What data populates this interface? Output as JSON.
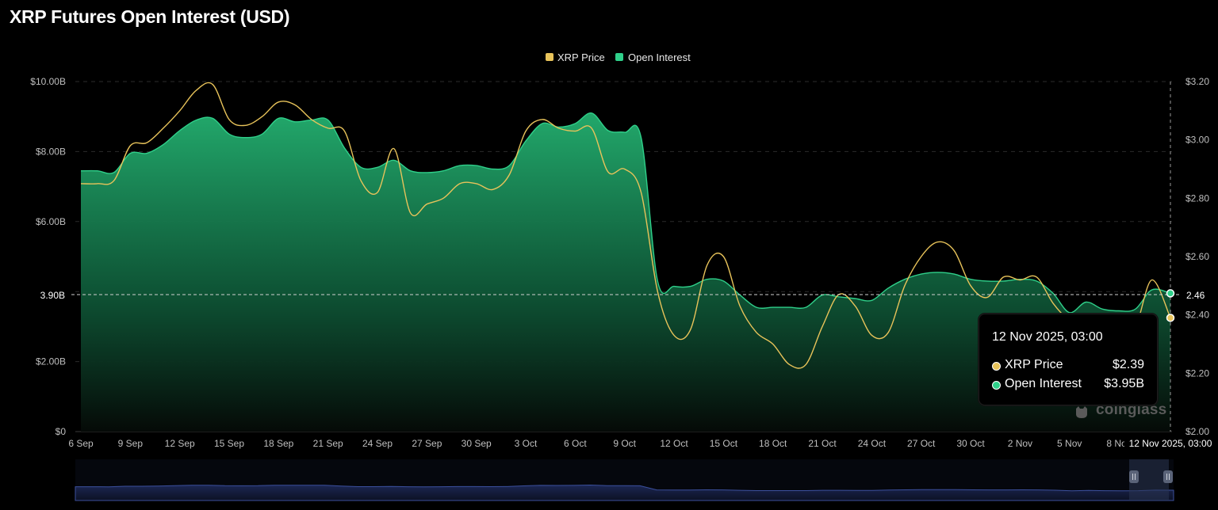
{
  "title": "XRP Futures Open Interest (USD)",
  "colors": {
    "price_line": "#e8c35a",
    "oi_line": "#2fd08a",
    "oi_fill_top": "#1f9e64",
    "background": "#000000"
  },
  "tooltip": {
    "date": "12 Nov 2025, 03:00",
    "rows": [
      {
        "label": "XRP Price",
        "value": "$2.39",
        "color": "#e8c35a"
      },
      {
        "label": "Open Interest",
        "value": "$3.95B",
        "color": "#2fd08a"
      }
    ]
  },
  "crosshair": {
    "left_label": "3.90B",
    "right_label": "2.46",
    "x_label": "12 Nov 2025, 03:00"
  },
  "watermark": "coinglass",
  "chart_data": {
    "type": "area",
    "title": "XRP Futures Open Interest (USD)",
    "legend": {
      "position": "top-center",
      "entries": [
        "XRP Price",
        "Open Interest"
      ]
    },
    "x_tick_labels": [
      "6 Sep",
      "9 Sep",
      "12 Sep",
      "15 Sep",
      "18 Sep",
      "21 Sep",
      "24 Sep",
      "27 Sep",
      "30 Sep",
      "3 Oct",
      "6 Oct",
      "9 Oct",
      "12 Oct",
      "15 Oct",
      "18 Oct",
      "21 Oct",
      "24 Oct",
      "27 Oct",
      "30 Oct",
      "2 Nov",
      "5 Nov",
      "8 Nov"
    ],
    "y_left": {
      "ticks": [
        "$0",
        "$2.00B",
        "$4.00B",
        "$6.00B",
        "$8.00B",
        "$10.00B"
      ],
      "tick_values": [
        0,
        2,
        4,
        6,
        8,
        10
      ],
      "range": [
        0,
        10
      ],
      "unit": "billion USD"
    },
    "y_right": {
      "ticks": [
        "$2.00",
        "$2.20",
        "$2.40",
        "$2.60",
        "$2.80",
        "$3.00",
        "$3.20"
      ],
      "tick_values": [
        2.0,
        2.2,
        2.4,
        2.6,
        2.8,
        3.0,
        3.2
      ],
      "range": [
        2.0,
        3.2
      ]
    },
    "grid": true,
    "x_days": [
      0,
      1,
      2,
      3,
      4,
      5,
      6,
      7,
      8,
      9,
      10,
      11,
      12,
      13,
      14,
      15,
      16,
      17,
      18,
      19,
      20,
      21,
      22,
      23,
      24,
      25,
      26,
      27,
      28,
      29,
      30,
      31,
      32,
      33,
      34,
      35,
      36,
      37,
      38,
      39,
      40,
      41,
      42,
      43,
      44,
      45,
      46,
      47,
      48,
      49,
      50,
      51,
      52,
      53,
      54,
      55,
      56,
      57,
      58,
      59,
      60,
      61,
      62,
      63,
      64,
      65,
      66.125
    ],
    "series": [
      {
        "name": "Open Interest",
        "axis": "left",
        "values": [
          7.45,
          7.45,
          7.4,
          7.95,
          7.95,
          8.2,
          8.6,
          8.9,
          8.95,
          8.5,
          8.4,
          8.5,
          8.95,
          8.85,
          8.9,
          8.9,
          8.1,
          7.55,
          7.55,
          7.75,
          7.45,
          7.4,
          7.45,
          7.6,
          7.6,
          7.5,
          7.6,
          8.3,
          8.8,
          8.7,
          8.8,
          9.1,
          8.6,
          8.55,
          8.4,
          4.3,
          4.15,
          4.15,
          4.35,
          4.3,
          3.9,
          3.55,
          3.55,
          3.55,
          3.55,
          3.9,
          3.85,
          3.8,
          3.75,
          4.1,
          4.35,
          4.5,
          4.55,
          4.5,
          4.35,
          4.3,
          4.3,
          4.35,
          4.3,
          3.95,
          3.4,
          3.7,
          3.5,
          3.45,
          3.5,
          4.05,
          3.95
        ]
      },
      {
        "name": "XRP Price",
        "axis": "right",
        "values": [
          2.85,
          2.85,
          2.86,
          2.98,
          2.99,
          3.04,
          3.1,
          3.17,
          3.19,
          3.07,
          3.05,
          3.08,
          3.13,
          3.12,
          3.07,
          3.04,
          3.03,
          2.86,
          2.82,
          2.97,
          2.75,
          2.78,
          2.8,
          2.85,
          2.85,
          2.83,
          2.88,
          3.03,
          3.07,
          3.04,
          3.03,
          3.04,
          2.89,
          2.9,
          2.82,
          2.48,
          2.33,
          2.35,
          2.57,
          2.6,
          2.43,
          2.34,
          2.3,
          2.23,
          2.23,
          2.36,
          2.47,
          2.43,
          2.33,
          2.34,
          2.5,
          2.6,
          2.65,
          2.62,
          2.5,
          2.46,
          2.53,
          2.52,
          2.53,
          2.44,
          2.38,
          2.35,
          2.35,
          2.35,
          2.36,
          2.52,
          2.39
        ]
      }
    ]
  }
}
